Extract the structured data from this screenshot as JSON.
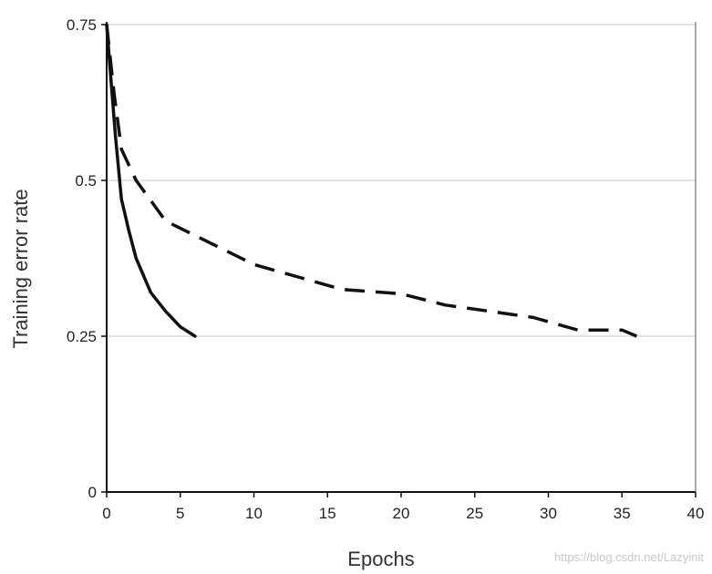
{
  "chart_data": {
    "type": "line",
    "xlabel": "Epochs",
    "ylabel": "Training error rate",
    "xlim": [
      0,
      40
    ],
    "ylim": [
      0,
      0.75
    ],
    "x_ticks": [
      0,
      5,
      10,
      15,
      20,
      25,
      30,
      35,
      40
    ],
    "x_tick_labels": [
      "0",
      "5",
      "10",
      "15",
      "20",
      "25",
      "30",
      "35",
      "40"
    ],
    "y_ticks": [
      0,
      0.25,
      0.5,
      0.75
    ],
    "y_tick_labels": [
      "0",
      "0.25",
      "0.5",
      "0.75"
    ],
    "grid": "horizontal",
    "series": [
      {
        "style": "solid",
        "color": "#111111",
        "x": [
          0,
          0.3,
          0.6,
          1,
          1.5,
          2,
          3,
          4,
          5,
          6
        ],
        "y": [
          0.75,
          0.66,
          0.57,
          0.47,
          0.42,
          0.375,
          0.32,
          0.29,
          0.265,
          0.25
        ]
      },
      {
        "style": "dashed",
        "color": "#111111",
        "x": [
          0,
          0.5,
          1,
          2,
          4,
          7,
          10,
          13,
          16,
          20,
          23,
          26,
          29,
          32,
          35,
          36
        ],
        "y": [
          0.75,
          0.64,
          0.55,
          0.5,
          0.435,
          0.4,
          0.365,
          0.345,
          0.325,
          0.318,
          0.3,
          0.29,
          0.28,
          0.26,
          0.26,
          0.25
        ]
      }
    ]
  },
  "watermark": "https://blog.csdn.net/Lazyinit"
}
